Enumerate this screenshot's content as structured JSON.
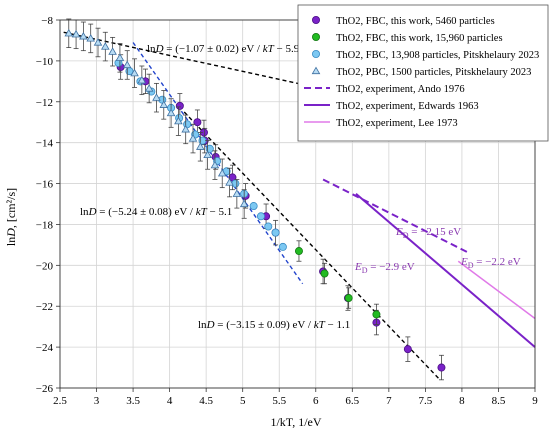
{
  "chart_data": {
    "type": "scatter",
    "xlabel": "1/kT, 1/eV",
    "ylabel_parts": {
      "pre": "ln",
      "italic": "D",
      "post": ", [cm²/s]"
    },
    "xlim": [
      2.5,
      9
    ],
    "ylim": [
      -26,
      -8
    ],
    "xticks": [
      2.5,
      3,
      3.5,
      4,
      4.5,
      5,
      5.5,
      6,
      6.5,
      7,
      7.5,
      8,
      8.5,
      9
    ],
    "xtick_labels": [
      "2.5",
      "3",
      "3.5",
      "4",
      "4.5",
      "5",
      "5.5",
      "6",
      "6.5",
      "7",
      "7.5",
      "8",
      "8.5",
      "9"
    ],
    "yticks": [
      -8,
      -10,
      -12,
      -14,
      -16,
      -18,
      -20,
      -22,
      -24,
      -26
    ],
    "ytick_labels": [
      "−8",
      "−10",
      "−12",
      "−14",
      "−16",
      "−18",
      "−20",
      "−22",
      "−24",
      "−26"
    ],
    "grid": {
      "x": true,
      "y": true
    },
    "legend_position": "top-right",
    "series": [
      {
        "name": "ThO2, FBC, this work, 5460 particles",
        "marker": "circle",
        "color": "#7a22c8",
        "edge": "#4b0f86",
        "points": [
          [
            3.33,
            -10.3
          ],
          [
            3.67,
            -11.0
          ],
          [
            4.14,
            -12.2
          ],
          [
            4.38,
            -13.0
          ],
          [
            4.47,
            -13.5
          ],
          [
            4.48,
            -13.9
          ],
          [
            4.63,
            -14.7
          ],
          [
            4.86,
            -15.7
          ],
          [
            5.04,
            -16.6
          ],
          [
            5.32,
            -17.6
          ],
          [
            5.45,
            -18.4
          ],
          [
            6.1,
            -20.3
          ],
          [
            6.44,
            -21.6
          ],
          [
            6.83,
            -22.8
          ],
          [
            7.26,
            -24.1
          ],
          [
            7.72,
            -25.0
          ]
        ],
        "errors": [
          0.6,
          0.6,
          0.6,
          0.6,
          0.6,
          0.6,
          0.6,
          0.6,
          0.6,
          0.6,
          0.6,
          0.6,
          0.6,
          0.6,
          0.6,
          0.6
        ]
      },
      {
        "name": "ThO2, FBC, this work, 15,960 particles",
        "marker": "circle",
        "color": "#22bb22",
        "edge": "#147814",
        "points": [
          [
            5.77,
            -19.3
          ],
          [
            6.12,
            -20.4
          ],
          [
            6.45,
            -21.6
          ],
          [
            6.83,
            -22.4
          ]
        ],
        "errors": [
          0.5,
          0.5,
          0.5,
          0.5
        ]
      },
      {
        "name": "ThO2, FBC, 13,908 particles, Pitskhelaury 2023",
        "marker": "circle",
        "color": "#7cc8f2",
        "edge": "#3a8cc4",
        "points": [
          [
            3.3,
            -10.1
          ],
          [
            3.45,
            -10.5
          ],
          [
            3.6,
            -11.0
          ],
          [
            3.75,
            -11.5
          ],
          [
            3.9,
            -11.9
          ],
          [
            4.02,
            -12.3
          ],
          [
            4.13,
            -12.8
          ],
          [
            4.24,
            -13.1
          ],
          [
            4.35,
            -13.6
          ],
          [
            4.45,
            -13.9
          ],
          [
            4.55,
            -14.3
          ],
          [
            4.65,
            -14.9
          ],
          [
            4.78,
            -15.4
          ],
          [
            4.9,
            -16.0
          ],
          [
            5.02,
            -16.5
          ],
          [
            5.15,
            -17.1
          ],
          [
            5.25,
            -17.6
          ],
          [
            5.35,
            -18.1
          ],
          [
            5.45,
            -18.4
          ],
          [
            5.55,
            -19.1
          ]
        ],
        "errors": []
      },
      {
        "name": "ThO2, PBC, 1500 particles, Pitskhelaury 2023",
        "marker": "triangle",
        "color": "#b8dcf4",
        "edge": "#3d6fa0",
        "points": [
          [
            2.62,
            -8.65
          ],
          [
            2.72,
            -8.7
          ],
          [
            2.82,
            -8.8
          ],
          [
            2.92,
            -8.9
          ],
          [
            3.02,
            -9.1
          ],
          [
            3.12,
            -9.3
          ],
          [
            3.22,
            -9.55
          ],
          [
            3.32,
            -9.85
          ],
          [
            3.42,
            -10.2
          ],
          [
            3.52,
            -10.6
          ],
          [
            3.62,
            -10.95
          ],
          [
            3.72,
            -11.35
          ],
          [
            3.82,
            -11.8
          ],
          [
            3.92,
            -12.15
          ],
          [
            4.02,
            -12.55
          ],
          [
            4.12,
            -12.95
          ],
          [
            4.22,
            -13.35
          ],
          [
            4.32,
            -13.8
          ],
          [
            4.42,
            -14.2
          ],
          [
            4.52,
            -14.6
          ],
          [
            4.62,
            -15.1
          ],
          [
            4.72,
            -15.5
          ],
          [
            4.82,
            -15.95
          ],
          [
            4.92,
            -16.5
          ],
          [
            5.02,
            -17.0
          ]
        ],
        "errors": [
          0.7,
          0.7,
          0.7,
          0.7,
          0.7,
          0.7,
          0.7,
          0.7,
          0.7,
          0.7,
          0.7,
          0.7,
          0.7,
          0.7,
          0.7,
          0.7,
          0.7,
          0.7,
          0.7,
          0.7,
          0.7,
          0.7,
          0.7,
          0.7,
          0.7
        ]
      }
    ],
    "lines": [
      {
        "name": "ThO2, experiment, Ando 1976",
        "style": "dashed",
        "color": "#7a22c8",
        "width": 2,
        "points": [
          [
            6.1,
            -15.8
          ],
          [
            8.1,
            -19.4
          ]
        ]
      },
      {
        "name": "ThO2, experiment, Edwards 1963",
        "style": "solid",
        "color": "#7a22c8",
        "width": 2,
        "points": [
          [
            6.55,
            -16.5
          ],
          [
            9.0,
            -24.0
          ]
        ]
      },
      {
        "name": "ThO2, experiment, Lee 1973",
        "style": "solid",
        "color": "#e07ae8",
        "width": 1.5,
        "points": [
          [
            7.95,
            -19.8
          ],
          [
            9.0,
            -22.6
          ]
        ]
      }
    ],
    "fits": [
      {
        "points": [
          [
            2.55,
            -8.6
          ],
          [
            6.2,
            -11.45
          ]
        ],
        "color": "#000000"
      },
      {
        "points": [
          [
            3.5,
            -9.1
          ],
          [
            5.82,
            -20.9
          ]
        ],
        "color": "#2244cc"
      },
      {
        "points": [
          [
            4.2,
            -12.5
          ],
          [
            7.7,
            -25.6
          ]
        ],
        "color": "#000000"
      }
    ],
    "annotations": {
      "fit1": {
        "pre": "ln",
        "it": "D",
        "post": " = (−1.07 ± 0.02) eV / ",
        "it2": "kT",
        "post2": " − 5.9"
      },
      "fit2": {
        "pre": "ln",
        "it": "D",
        "post": " = (−5.24 ± 0.08) eV / ",
        "it2": "kT",
        "post2": " − 5.1"
      },
      "fit3": {
        "pre": "ln",
        "it": "D",
        "post": " = (−3.15 ± 0.09) eV / ",
        "it2": "kT",
        "post2": " − 1.1"
      },
      "ed_ando": {
        "it": "E",
        "sub": "D",
        "post": " = −2.15 eV"
      },
      "ed_edwards": {
        "it": "E",
        "sub": "D",
        "post": " = −2.9 eV"
      },
      "ed_lee": {
        "it": "E",
        "sub": "D",
        "post": " = −2.2 eV"
      }
    }
  }
}
